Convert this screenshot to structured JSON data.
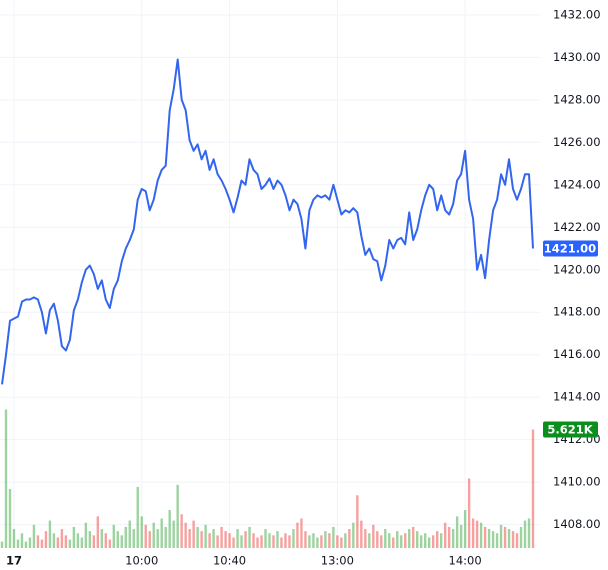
{
  "chart_data": {
    "type": "line",
    "series": [
      {
        "name": "Price",
        "color": "#3366ee",
        "values": [
          1414.6,
          1416.0,
          1417.6,
          1417.7,
          1417.8,
          1418.5,
          1418.6,
          1418.6,
          1418.7,
          1418.6,
          1418.0,
          1417.0,
          1418.1,
          1418.4,
          1417.6,
          1416.4,
          1416.2,
          1416.7,
          1418.1,
          1418.6,
          1419.4,
          1420.0,
          1420.2,
          1419.8,
          1419.1,
          1419.5,
          1418.6,
          1418.2,
          1419.1,
          1419.5,
          1420.4,
          1421.0,
          1421.4,
          1421.9,
          1423.3,
          1423.8,
          1423.7,
          1422.8,
          1423.3,
          1424.2,
          1424.7,
          1424.9,
          1427.5,
          1428.5,
          1429.9,
          1428.0,
          1427.5,
          1426.1,
          1425.6,
          1425.9,
          1425.2,
          1425.6,
          1424.7,
          1425.2,
          1424.5,
          1424.2,
          1423.8,
          1423.3,
          1422.7,
          1423.4,
          1424.2,
          1424.0,
          1425.2,
          1424.7,
          1424.5,
          1423.8,
          1424.0,
          1424.3,
          1423.8,
          1424.2,
          1424.0,
          1423.5,
          1422.8,
          1423.3,
          1423.1,
          1422.4,
          1421.0,
          1422.8,
          1423.3,
          1423.5,
          1423.4,
          1423.5,
          1423.3,
          1424.0,
          1423.3,
          1422.6,
          1422.8,
          1422.7,
          1422.9,
          1422.7,
          1421.6,
          1420.7,
          1421.0,
          1420.5,
          1420.4,
          1419.5,
          1420.2,
          1421.4,
          1421.0,
          1421.4,
          1421.5,
          1421.2,
          1422.7,
          1421.4,
          1421.9,
          1422.8,
          1423.5,
          1424.0,
          1423.8,
          1422.8,
          1423.5,
          1422.8,
          1422.6,
          1423.1,
          1424.2,
          1424.5,
          1425.6,
          1423.3,
          1422.4,
          1420.0,
          1420.7,
          1419.6,
          1421.4,
          1422.8,
          1423.3,
          1424.5,
          1424.0,
          1425.2,
          1423.8,
          1423.3,
          1423.8,
          1424.5,
          1424.5,
          1421.0
        ]
      }
    ],
    "price_label": {
      "value": 1421.0,
      "label": "1421.00",
      "color": "#2962ff"
    },
    "volume": {
      "up_color": "rgba(76,175,80,0.55)",
      "down_color": "rgba(239,83,80,0.55)",
      "ylim": [
        0,
        26000
      ],
      "values": [
        300,
        6574,
        2800,
        900,
        400,
        700,
        300,
        500,
        1100,
        600,
        400,
        800,
        1300,
        700,
        500,
        900,
        600,
        400,
        1000,
        700,
        500,
        1200,
        800,
        600,
        1500,
        900,
        700,
        400,
        1100,
        800,
        600,
        1000,
        1300,
        900,
        2900,
        1500,
        1100,
        800,
        1200,
        900,
        1400,
        1000,
        1800,
        1300,
        3000,
        1600,
        1200,
        900,
        1300,
        1000,
        800,
        1100,
        700,
        900,
        600,
        1000,
        800,
        700,
        500,
        900,
        600,
        800,
        1000,
        700,
        500,
        600,
        900,
        700,
        600,
        800,
        500,
        700,
        600,
        900,
        1200,
        1400,
        800,
        600,
        700,
        500,
        600,
        800,
        700,
        1000,
        600,
        500,
        700,
        900,
        1200,
        2500,
        1300,
        900,
        700,
        1100,
        800,
        600,
        900,
        700,
        500,
        800,
        600,
        700,
        900,
        1000,
        800,
        600,
        700,
        500,
        600,
        800,
        700,
        1200,
        1000,
        900,
        1500,
        1100,
        1800,
        3300,
        1400,
        1300,
        1200,
        1000,
        900,
        800,
        700,
        1100,
        1000,
        900,
        800,
        700,
        1000,
        1300,
        1400,
        5621
      ],
      "last_label": {
        "value": 5621,
        "label": "5.621K",
        "color": "#0a8f1c"
      }
    },
    "ylim": [
      1406.9,
      1432.7
    ],
    "yticks": [
      {
        "value": 1408,
        "label": "1408.00"
      },
      {
        "value": 1410,
        "label": "1410.00"
      },
      {
        "value": 1412,
        "label": "1412.00"
      },
      {
        "value": 1414,
        "label": "1414.00"
      },
      {
        "value": 1416,
        "label": "1416.00"
      },
      {
        "value": 1418,
        "label": "1418.00"
      },
      {
        "value": 1420,
        "label": "1420.00"
      },
      {
        "value": 1422,
        "label": "1422.00"
      },
      {
        "value": 1424,
        "label": "1424.00"
      },
      {
        "value": 1426,
        "label": "1426.00"
      },
      {
        "value": 1428,
        "label": "1428.00"
      },
      {
        "value": 1430,
        "label": "1430.00"
      },
      {
        "value": 1432,
        "label": "1432.00"
      }
    ],
    "xticks": [
      {
        "value": 3,
        "label": "17"
      },
      {
        "value": 35,
        "label": "10:00"
      },
      {
        "value": 57,
        "label": "10:40"
      },
      {
        "value": 84,
        "label": "13:00"
      },
      {
        "value": 116,
        "label": "14:00"
      }
    ],
    "grid": true
  }
}
